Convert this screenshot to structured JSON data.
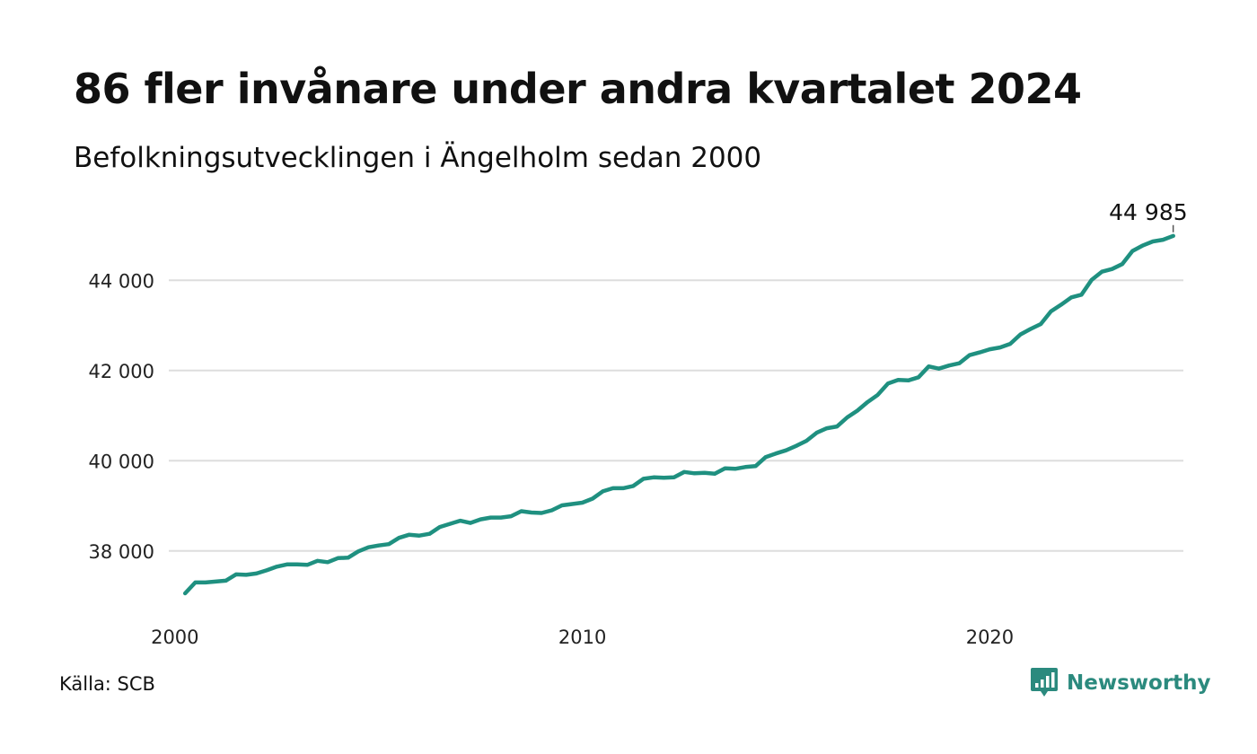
{
  "title": "86 fler invånare under andra kvartalet 2024",
  "subtitle": "Befolkningsutvecklingen i Ängelholm sedan 2000",
  "source": "Källa: SCB",
  "brand": {
    "name": "Newsworthy",
    "icon": "newsworthy-logo-icon",
    "color": "#2b8a7e"
  },
  "colors": {
    "line": "#1f9080",
    "grid": "#dddddd"
  },
  "chart_data": {
    "type": "line",
    "x_ticks": [
      2000,
      2010,
      2020
    ],
    "x_tick_labels": [
      "2000",
      "2010",
      "2020"
    ],
    "y_ticks": [
      38000,
      40000,
      42000,
      44000
    ],
    "y_tick_labels": [
      "38 000",
      "40 000",
      "42 000",
      "44 000"
    ],
    "xlim": [
      1999.85,
      2024.75
    ],
    "ylim": [
      37000,
      45000
    ],
    "grid": true,
    "end_label": "44 985",
    "series": [
      {
        "color": "#1f9080",
        "points": [
          [
            2000.25,
            37060
          ],
          [
            2000.5,
            37300
          ],
          [
            2000.75,
            37300
          ],
          [
            2001.0,
            37320
          ],
          [
            2001.25,
            37340
          ],
          [
            2001.5,
            37480
          ],
          [
            2001.75,
            37470
          ],
          [
            2002.0,
            37500
          ],
          [
            2002.25,
            37570
          ],
          [
            2002.5,
            37650
          ],
          [
            2002.75,
            37700
          ],
          [
            2003.0,
            37700
          ],
          [
            2003.25,
            37690
          ],
          [
            2003.5,
            37780
          ],
          [
            2003.75,
            37750
          ],
          [
            2004.0,
            37840
          ],
          [
            2004.25,
            37850
          ],
          [
            2004.5,
            37990
          ],
          [
            2004.75,
            38080
          ],
          [
            2005.0,
            38120
          ],
          [
            2005.25,
            38150
          ],
          [
            2005.5,
            38290
          ],
          [
            2005.75,
            38360
          ],
          [
            2006.0,
            38340
          ],
          [
            2006.25,
            38380
          ],
          [
            2006.5,
            38530
          ],
          [
            2006.75,
            38600
          ],
          [
            2007.0,
            38670
          ],
          [
            2007.25,
            38620
          ],
          [
            2007.5,
            38700
          ],
          [
            2007.75,
            38740
          ],
          [
            2008.0,
            38740
          ],
          [
            2008.25,
            38770
          ],
          [
            2008.5,
            38880
          ],
          [
            2008.75,
            38850
          ],
          [
            2009.0,
            38840
          ],
          [
            2009.25,
            38900
          ],
          [
            2009.5,
            39010
          ],
          [
            2009.75,
            39040
          ],
          [
            2010.0,
            39070
          ],
          [
            2010.25,
            39160
          ],
          [
            2010.5,
            39320
          ],
          [
            2010.75,
            39390
          ],
          [
            2011.0,
            39390
          ],
          [
            2011.25,
            39440
          ],
          [
            2011.5,
            39600
          ],
          [
            2011.75,
            39630
          ],
          [
            2012.0,
            39620
          ],
          [
            2012.25,
            39630
          ],
          [
            2012.5,
            39750
          ],
          [
            2012.75,
            39720
          ],
          [
            2013.0,
            39730
          ],
          [
            2013.25,
            39710
          ],
          [
            2013.5,
            39830
          ],
          [
            2013.75,
            39820
          ],
          [
            2014.0,
            39860
          ],
          [
            2014.25,
            39880
          ],
          [
            2014.5,
            40080
          ],
          [
            2014.75,
            40160
          ],
          [
            2015.0,
            40230
          ],
          [
            2015.25,
            40330
          ],
          [
            2015.5,
            40440
          ],
          [
            2015.75,
            40620
          ],
          [
            2016.0,
            40720
          ],
          [
            2016.25,
            40760
          ],
          [
            2016.5,
            40960
          ],
          [
            2016.75,
            41110
          ],
          [
            2017.0,
            41300
          ],
          [
            2017.25,
            41460
          ],
          [
            2017.5,
            41710
          ],
          [
            2017.75,
            41790
          ],
          [
            2018.0,
            41780
          ],
          [
            2018.25,
            41850
          ],
          [
            2018.5,
            42090
          ],
          [
            2018.75,
            42040
          ],
          [
            2019.0,
            42110
          ],
          [
            2019.25,
            42160
          ],
          [
            2019.5,
            42340
          ],
          [
            2019.75,
            42400
          ],
          [
            2020.0,
            42470
          ],
          [
            2020.25,
            42510
          ],
          [
            2020.5,
            42590
          ],
          [
            2020.75,
            42800
          ],
          [
            2021.0,
            42920
          ],
          [
            2021.25,
            43030
          ],
          [
            2021.5,
            43310
          ],
          [
            2021.75,
            43460
          ],
          [
            2022.0,
            43620
          ],
          [
            2022.25,
            43680
          ],
          [
            2022.5,
            44010
          ],
          [
            2022.75,
            44190
          ],
          [
            2023.0,
            44250
          ],
          [
            2023.25,
            44360
          ],
          [
            2023.5,
            44650
          ],
          [
            2023.75,
            44770
          ],
          [
            2024.0,
            44860
          ],
          [
            2024.25,
            44899
          ],
          [
            2024.5,
            44985
          ]
        ]
      }
    ]
  }
}
